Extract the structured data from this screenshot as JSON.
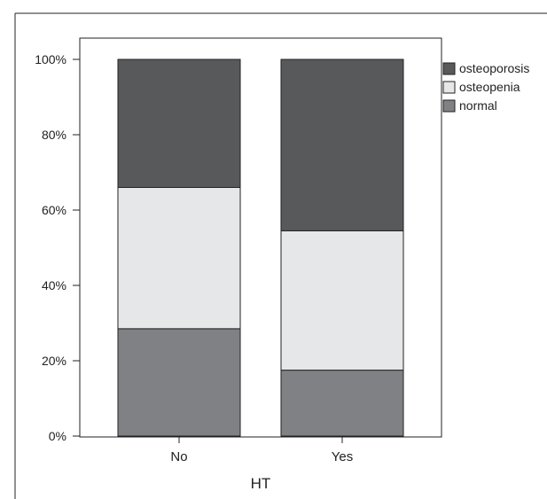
{
  "chart_data": {
    "type": "bar",
    "stacked": true,
    "categories": [
      "No",
      "Yes"
    ],
    "series": [
      {
        "name": "normal",
        "values": [
          28.5,
          17.5
        ],
        "color": "#808184"
      },
      {
        "name": "osteopenia",
        "values": [
          37.5,
          37.0
        ],
        "color": "#e6e7e8"
      },
      {
        "name": "osteoporosis",
        "values": [
          34.0,
          45.5
        ],
        "color": "#58595b"
      }
    ],
    "legend_order": [
      "osteoporosis",
      "osteopenia",
      "normal"
    ],
    "title": "",
    "xlabel": "HT",
    "ylabel": "",
    "ylim": [
      0,
      100
    ],
    "y_ticks": [
      0,
      20,
      40,
      60,
      80,
      100
    ],
    "y_tick_labels": [
      "0%",
      "20%",
      "40%",
      "60%",
      "80%",
      "100%"
    ],
    "grid": false,
    "legend_position": "top-right"
  }
}
